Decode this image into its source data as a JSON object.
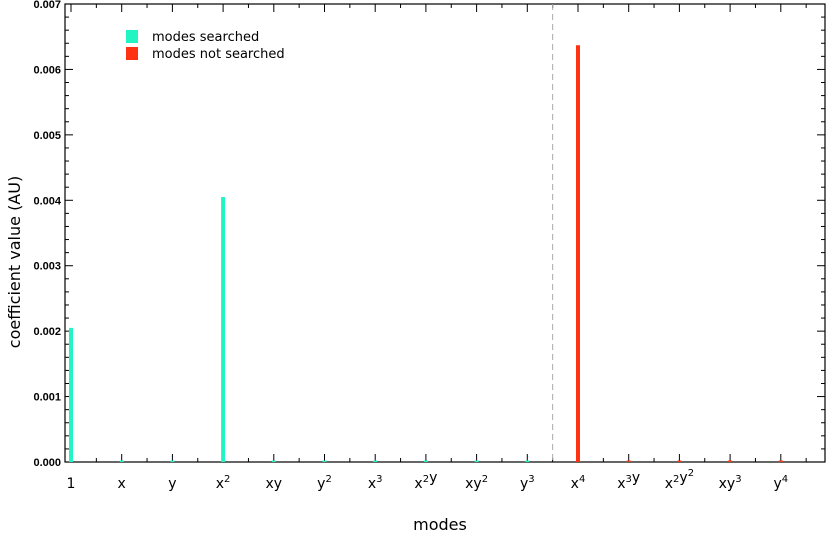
{
  "chart_data": {
    "type": "bar",
    "title": "",
    "xlabel": "modes",
    "ylabel": "coefficient value   (AU)",
    "ylim": [
      0,
      0.007
    ],
    "yticks": [
      "0.000",
      "0.001",
      "0.002",
      "0.003",
      "0.004",
      "0.005",
      "0.006",
      "0.007"
    ],
    "categories": [
      {
        "id": "1",
        "base": "1",
        "parts": [
          [
            "1",
            ""
          ]
        ]
      },
      {
        "id": "x",
        "parts": [
          [
            "x",
            ""
          ]
        ]
      },
      {
        "id": "y",
        "parts": [
          [
            "y",
            ""
          ]
        ]
      },
      {
        "id": "x2",
        "parts": [
          [
            "x",
            "2"
          ]
        ]
      },
      {
        "id": "xy",
        "parts": [
          [
            "xy",
            ""
          ]
        ]
      },
      {
        "id": "y2",
        "parts": [
          [
            "y",
            "2"
          ]
        ]
      },
      {
        "id": "x3",
        "parts": [
          [
            "x",
            "3"
          ]
        ]
      },
      {
        "id": "x2y",
        "parts": [
          [
            "x",
            "2"
          ],
          [
            "y",
            ""
          ]
        ]
      },
      {
        "id": "xy2",
        "parts": [
          [
            "xy",
            "2"
          ]
        ]
      },
      {
        "id": "y3",
        "parts": [
          [
            "y",
            "3"
          ]
        ]
      },
      {
        "id": "x4",
        "parts": [
          [
            "x",
            "4"
          ]
        ]
      },
      {
        "id": "x3y",
        "parts": [
          [
            "x",
            "3"
          ],
          [
            "y",
            ""
          ]
        ]
      },
      {
        "id": "x2y2",
        "parts": [
          [
            "x",
            "2"
          ],
          [
            "y",
            "2"
          ]
        ]
      },
      {
        "id": "xy3",
        "parts": [
          [
            "xy",
            "3"
          ]
        ]
      },
      {
        "id": "y4",
        "parts": [
          [
            "y",
            "4"
          ]
        ]
      }
    ],
    "series": [
      {
        "name": "modes searched",
        "color": "#22f5c4",
        "values": [
          0.00205,
          0,
          0,
          0.00405,
          0,
          0,
          0,
          0,
          0,
          0,
          null,
          null,
          null,
          null,
          null
        ]
      },
      {
        "name": "modes not searched",
        "color": "#ff3311",
        "values": [
          null,
          null,
          null,
          null,
          null,
          null,
          null,
          null,
          null,
          null,
          0.00637,
          0,
          0,
          0,
          0
        ]
      }
    ],
    "divider_after_index": 9,
    "legend_position": "top-left",
    "grid": false
  }
}
